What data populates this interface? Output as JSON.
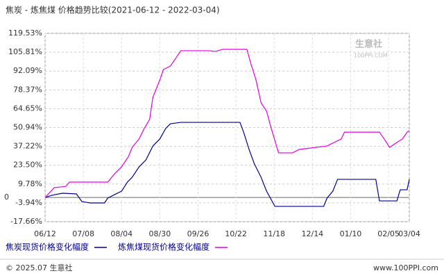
{
  "chart_data": {
    "type": "line",
    "title": "焦炭 - 炼焦煤 价格趋势比较(2021-06-12 - 2022-03-04)",
    "watermark": "生意社",
    "watermark_url": "100PPI.COM",
    "footer_left": "© 2025.07 生意社",
    "footer_right": "www.100PPI.com",
    "xlim": [
      0,
      100
    ],
    "xticks": [
      {
        "value": 0,
        "label": "06/12"
      },
      {
        "value": 10.5,
        "label": "07/08"
      },
      {
        "value": 21,
        "label": "08/04"
      },
      {
        "value": 31.5,
        "label": "08/30"
      },
      {
        "value": 42,
        "label": "09/26"
      },
      {
        "value": 52.4,
        "label": "10/22"
      },
      {
        "value": 62.9,
        "label": "11/18"
      },
      {
        "value": 73.4,
        "label": "12/14"
      },
      {
        "value": 83.9,
        "label": "01/10"
      },
      {
        "value": 94.3,
        "label": "02/05"
      },
      {
        "value": 100,
        "label": "03/04"
      }
    ],
    "ylim": [
      -17.66,
      119.53
    ],
    "yticks": [
      {
        "value": 119.53,
        "label": "119.53%"
      },
      {
        "value": 105.81,
        "label": "105.81%"
      },
      {
        "value": 92.09,
        "label": "92.09%"
      },
      {
        "value": 78.37,
        "label": "78.37%"
      },
      {
        "value": 64.65,
        "label": "64.65%"
      },
      {
        "value": 50.94,
        "label": "50.94%"
      },
      {
        "value": 37.22,
        "label": "37.22%"
      },
      {
        "value": 23.5,
        "label": "23.50%"
      },
      {
        "value": 9.78,
        "label": "9.78%"
      },
      0,
      {
        "value": -3.94,
        "label": "-3.94%"
      },
      {
        "value": -17.66,
        "label": "-17.66%"
      }
    ],
    "grid": true,
    "series": [
      {
        "name": "焦炭现货价格变化幅度",
        "color": "#00008b",
        "x": [
          0,
          1.9,
          4.8,
          8.6,
          10.1,
          12.4,
          16.3,
          17.2,
          19.1,
          21.0,
          22.6,
          23.9,
          25.8,
          27.7,
          29.6,
          31.5,
          33.1,
          34.4,
          37.3,
          53.5,
          54.5,
          56.0,
          57.4,
          59.3,
          60.8,
          63.1,
          76.5,
          77.4,
          79.0,
          80.3,
          90.8,
          91.8,
          96.6,
          97.5,
          99.4,
          100
        ],
        "values": [
          0,
          1.6,
          3.1,
          2.6,
          -3.0,
          -4.0,
          -4.0,
          -0.5,
          2.1,
          4.6,
          11.2,
          14.7,
          22.3,
          27.4,
          37.5,
          42.6,
          50.2,
          53.7,
          54.7,
          54.7,
          47.6,
          35.0,
          24.8,
          14.7,
          4.6,
          -6.5,
          -6.5,
          -0.5,
          4.6,
          13.2,
          13.2,
          -2.5,
          -2.5,
          5.6,
          5.6,
          13.2
        ]
      },
      {
        "name": "炼焦煤现货价格变化幅度",
        "color": "#e000e0",
        "x": [
          0,
          2.5,
          5.7,
          6.7,
          17.2,
          19.1,
          21.0,
          22.9,
          23.9,
          25.8,
          27.2,
          28.7,
          29.6,
          31.5,
          32.5,
          34.4,
          37.3,
          44.9,
          46.8,
          48.8,
          55.4,
          56.4,
          57.9,
          59.3,
          60.8,
          62.1,
          64.1,
          67.9,
          69.8,
          77.4,
          81.3,
          82.2,
          91.8,
          93.1,
          94.6,
          96.6,
          98.1,
          99.4,
          100
        ],
        "values": [
          0,
          7.1,
          8.1,
          11.2,
          11.2,
          17.3,
          22.3,
          29.9,
          36.5,
          42.6,
          50.2,
          56.8,
          73.0,
          85.6,
          93.2,
          95.7,
          106.9,
          106.9,
          106.4,
          107.9,
          107.9,
          98.3,
          85.6,
          68.9,
          62.9,
          50.2,
          32.5,
          32.5,
          35.0,
          37.5,
          42.6,
          47.6,
          47.6,
          42.6,
          36.5,
          40.1,
          42.6,
          47.6,
          48.6
        ]
      }
    ]
  }
}
